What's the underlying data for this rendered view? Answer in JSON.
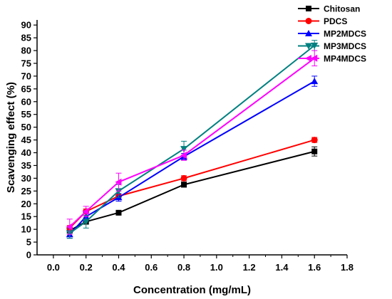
{
  "chart_data": {
    "type": "line",
    "title": "",
    "xlabel": "Concentration (mg/mL)",
    "ylabel": "Scavenging effect (%)",
    "xlim": [
      -0.1,
      1.8
    ],
    "ylim": [
      0,
      92
    ],
    "x_ticks": [
      "0.0",
      "0.2",
      "0.4",
      "0.6",
      "0.8",
      "1.0",
      "1.2",
      "1.4",
      "1.6",
      "1.8"
    ],
    "y_ticks": [
      "0",
      "5",
      "10",
      "15",
      "20",
      "25",
      "30",
      "35",
      "40",
      "45",
      "50",
      "55",
      "60",
      "65",
      "70",
      "75",
      "80",
      "85",
      "90"
    ],
    "grid": false,
    "legend_position": "top-right",
    "x": [
      0.1,
      0.2,
      0.4,
      0.8,
      1.6
    ],
    "series": [
      {
        "name": "Chitosan",
        "color": "#000000",
        "marker": "square",
        "values": [
          9.5,
          13,
          16.5,
          27.5,
          40.5
        ],
        "errors": [
          1,
          1,
          0.8,
          1,
          1.8
        ]
      },
      {
        "name": "PDCS",
        "color": "#ff0000",
        "marker": "circle",
        "values": [
          10.5,
          17,
          23,
          30,
          45
        ],
        "errors": [
          1,
          1,
          1,
          1,
          1
        ]
      },
      {
        "name": "MP2MDCS",
        "color": "#0000ff",
        "marker": "triangle-up",
        "values": [
          8,
          15,
          22.5,
          38.5,
          68
        ],
        "errors": [
          1.5,
          1.5,
          1.5,
          1.2,
          2
        ]
      },
      {
        "name": "MP3MDCS",
        "color": "#008080",
        "marker": "triangle-down",
        "values": [
          8.5,
          13,
          25,
          41.5,
          82
        ],
        "errors": [
          2,
          2.5,
          2.5,
          3,
          2
        ]
      },
      {
        "name": "MP4MDCS",
        "color": "#ff00ff",
        "marker": "triangle-left",
        "values": [
          11,
          17,
          28.5,
          39,
          77
        ],
        "errors": [
          3,
          2,
          3.5,
          2,
          3
        ]
      }
    ]
  }
}
